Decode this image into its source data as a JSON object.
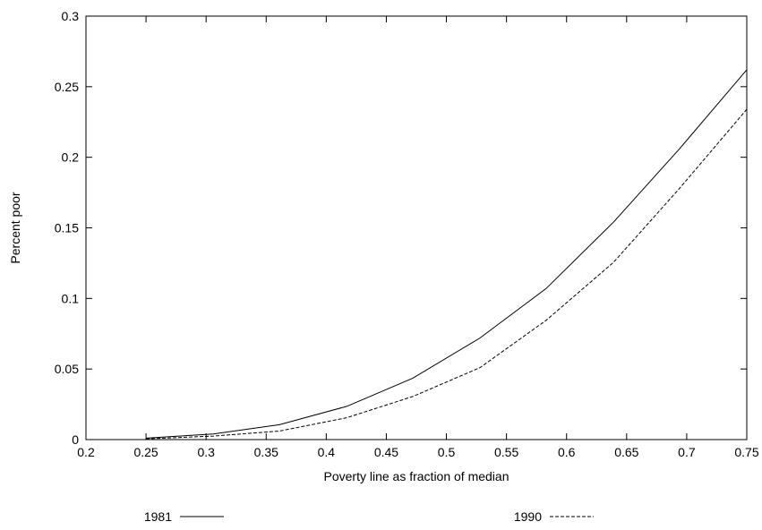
{
  "chart_data": {
    "type": "line",
    "title": "",
    "xlabel": "Poverty line as fraction of median",
    "ylabel": "Percent poor",
    "xlim": [
      0.2,
      0.75
    ],
    "ylim": [
      0,
      0.3
    ],
    "x_ticks": [
      0.2,
      0.25,
      0.3,
      0.35,
      0.4,
      0.45,
      0.5,
      0.55,
      0.6,
      0.65,
      0.7,
      0.75
    ],
    "x_tick_labels": [
      "0.2",
      "0.25",
      "0.3",
      "0.35",
      "0.4",
      "0.45",
      "0.5",
      "0.55",
      "0.6",
      "0.65",
      "0.7",
      "0.75"
    ],
    "y_ticks": [
      0,
      0.05,
      0.1,
      0.15,
      0.2,
      0.25,
      0.3
    ],
    "y_tick_labels": [
      "0",
      "0.05",
      "0.1",
      "0.15",
      "0.2",
      "0.25",
      "0.3"
    ],
    "grid": false,
    "legend_position": "bottom",
    "x": [
      0.25,
      0.306,
      0.361,
      0.417,
      0.472,
      0.528,
      0.583,
      0.639,
      0.694,
      0.75
    ],
    "series": [
      {
        "name": "1981",
        "style": "solid",
        "color": "#000000",
        "values": [
          0.001,
          0.004,
          0.0105,
          0.0235,
          0.0435,
          0.072,
          0.107,
          0.154,
          0.206,
          0.262
        ]
      },
      {
        "name": "1990",
        "style": "dashed",
        "color": "#000000",
        "values": [
          0.0005,
          0.0025,
          0.006,
          0.0155,
          0.0305,
          0.051,
          0.0845,
          0.1255,
          0.178,
          0.234
        ]
      }
    ]
  }
}
